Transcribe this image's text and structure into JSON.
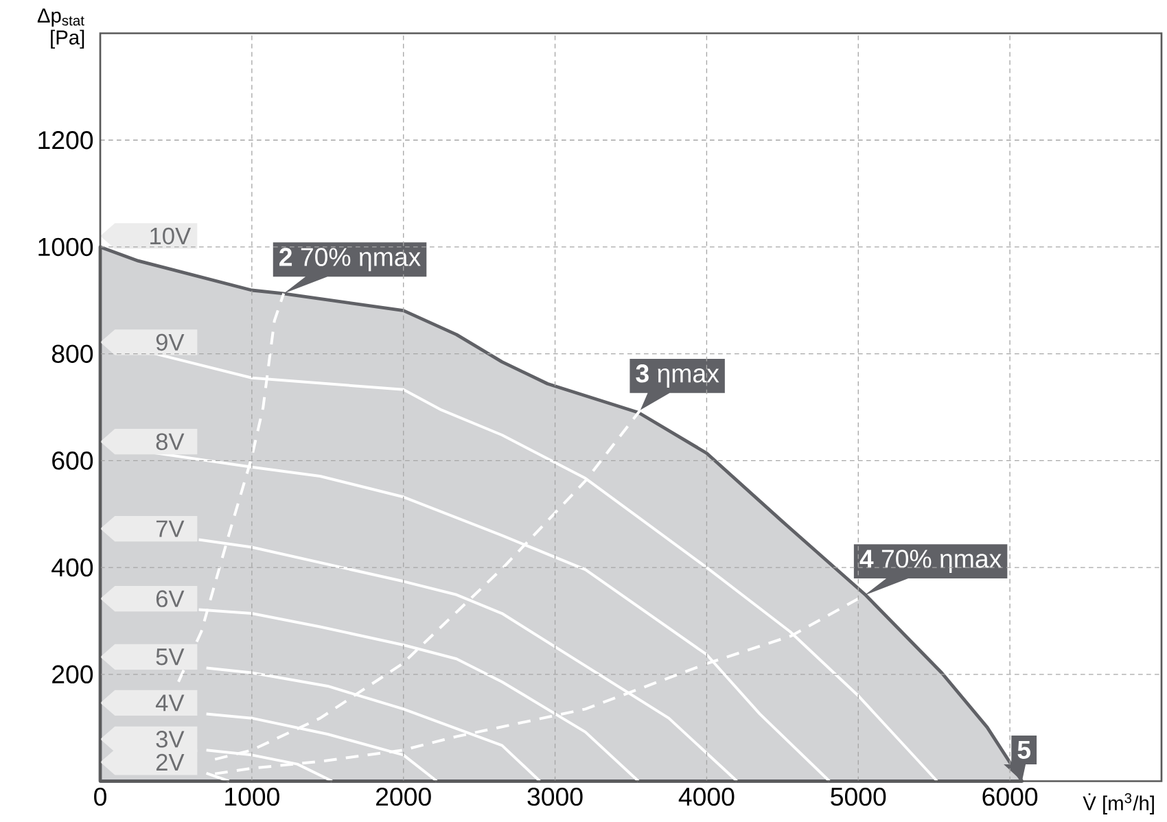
{
  "chart_data": {
    "type": "line",
    "xlabel": "V̇ [m$^{3}$/h]",
    "ylabel": "Δp$_{stat}$ [Pa]",
    "xlim": [
      0,
      7000
    ],
    "ylim": [
      0,
      1400
    ],
    "xticks": [
      0,
      1000,
      2000,
      3000,
      4000,
      5000,
      6000
    ],
    "yticks": [
      200,
      400,
      600,
      800,
      1000,
      1200
    ],
    "grid": true,
    "marker": "none",
    "series": [
      {
        "name": "10V",
        "type": "area",
        "color": "#d2d3d5",
        "x": [
          0,
          250,
          1000,
          1200,
          2000,
          2350,
          2650,
          2950,
          3550,
          4000,
          4500,
          5050,
          5550,
          5850,
          6080
        ],
        "values": [
          1000,
          974,
          919,
          913,
          881,
          836,
          785,
          744,
          690,
          614,
          486,
          348,
          203,
          101,
          0
        ]
      },
      {
        "name": "9V",
        "color": "#ffffff",
        "x": [
          350,
          1000,
          2000,
          2250,
          2650,
          3200,
          4000,
          4550,
          5000,
          5520
        ],
        "values": [
          801,
          755,
          733,
          695,
          648,
          567,
          400,
          280,
          160,
          0
        ]
      },
      {
        "name": "8V",
        "color": "#ffffff",
        "x": [
          350,
          1000,
          1450,
          2000,
          2650,
          3200,
          4000,
          4350,
          4810
        ],
        "values": [
          615,
          588,
          571,
          532,
          460,
          396,
          237,
          126,
          0
        ]
      },
      {
        "name": "7V",
        "color": "#ffffff",
        "x": [
          650,
          1000,
          2000,
          2350,
          2650,
          3200,
          3750,
          4200
        ],
        "values": [
          452,
          438,
          374,
          349,
          314,
          216,
          118,
          0
        ]
      },
      {
        "name": "6V",
        "color": "#ffffff",
        "x": [
          650,
          1000,
          1450,
          2000,
          2350,
          2650,
          3200,
          3550
        ],
        "values": [
          321,
          314,
          289,
          255,
          229,
          186,
          92,
          0
        ]
      },
      {
        "name": "5V",
        "color": "#ffffff",
        "x": [
          700,
          1000,
          1500,
          2000,
          2650,
          2900
        ],
        "values": [
          212,
          203,
          178,
          135,
          67,
          0
        ]
      },
      {
        "name": "4V",
        "color": "#ffffff",
        "x": [
          700,
          1000,
          1500,
          2000,
          2220
        ],
        "values": [
          126,
          118,
          88,
          49,
          0
        ]
      },
      {
        "name": "3V",
        "color": "#ffffff",
        "x": [
          700,
          1000,
          1300,
          1530
        ],
        "values": [
          58,
          49,
          32,
          0
        ]
      },
      {
        "name": "2V",
        "color": "#ffffff",
        "x": [
          700,
          850
        ],
        "values": [
          15,
          0
        ]
      },
      {
        "color": "#ffffff",
        "line_style": "dashed",
        "x": [
          516,
          667,
          848,
          998,
          1074,
          1149,
          1210
        ],
        "values": [
          186,
          280,
          461,
          605,
          699,
          862,
          913
        ]
      },
      {
        "color": "#ffffff",
        "line_style": "dashed",
        "x": [
          757,
          998,
          1451,
          1994,
          2658,
          3200,
          3563
        ],
        "values": [
          41,
          58,
          118,
          220,
          400,
          562,
          695
        ]
      },
      {
        "color": "#ffffff",
        "line_style": "dashed",
        "x": [
          757,
          998,
          1451,
          1994,
          2356,
          3200,
          4000,
          4558,
          5041
        ],
        "values": [
          14,
          24,
          37,
          58,
          84,
          135,
          220,
          272,
          348
        ]
      }
    ],
    "annotations": [
      {
        "text": "**2** 70% ηmax",
        "x": 1210,
        "y": 913
      },
      {
        "text": "**3** ηmax",
        "x": 3563,
        "y": 695
      },
      {
        "text": "**4** 70% ηmax",
        "x": 5041,
        "y": 348
      },
      {
        "text": "**5**",
        "x": 6080,
        "y": 0
      }
    ]
  }
}
